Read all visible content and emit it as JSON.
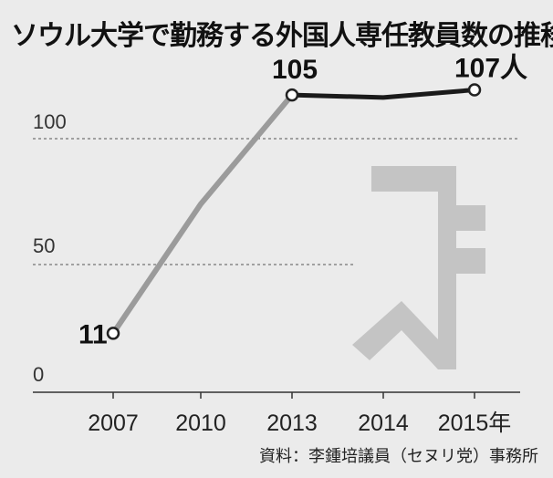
{
  "title": "ソウル大学で勤務する外国人専任教員数の推移",
  "source": "資料：李鍾培議員（セヌリ党）事務所",
  "colors": {
    "background": "#ebebeb",
    "line_early": "#9b9b9b",
    "line_recent": "#1a1a1a",
    "watermark": "#c4c4c4"
  },
  "chart_data": {
    "type": "line",
    "title": "ソウル大学で勤務する外国人専任教員数の推移",
    "categories": [
      "2007",
      "2010",
      "2013",
      "2014",
      "2015年"
    ],
    "series": [
      {
        "values": [
          11,
          62,
          105,
          104,
          107
        ]
      }
    ],
    "data_labels": [
      "11",
      "",
      "105",
      "",
      "107人"
    ],
    "yticks": [
      "0",
      "50",
      "100"
    ],
    "ytick_values": [
      0,
      50,
      100
    ],
    "ylim": [
      0,
      117
    ],
    "xlabel": "",
    "ylabel": "",
    "grid": "dashed at 50 and 100",
    "legend": "none"
  }
}
